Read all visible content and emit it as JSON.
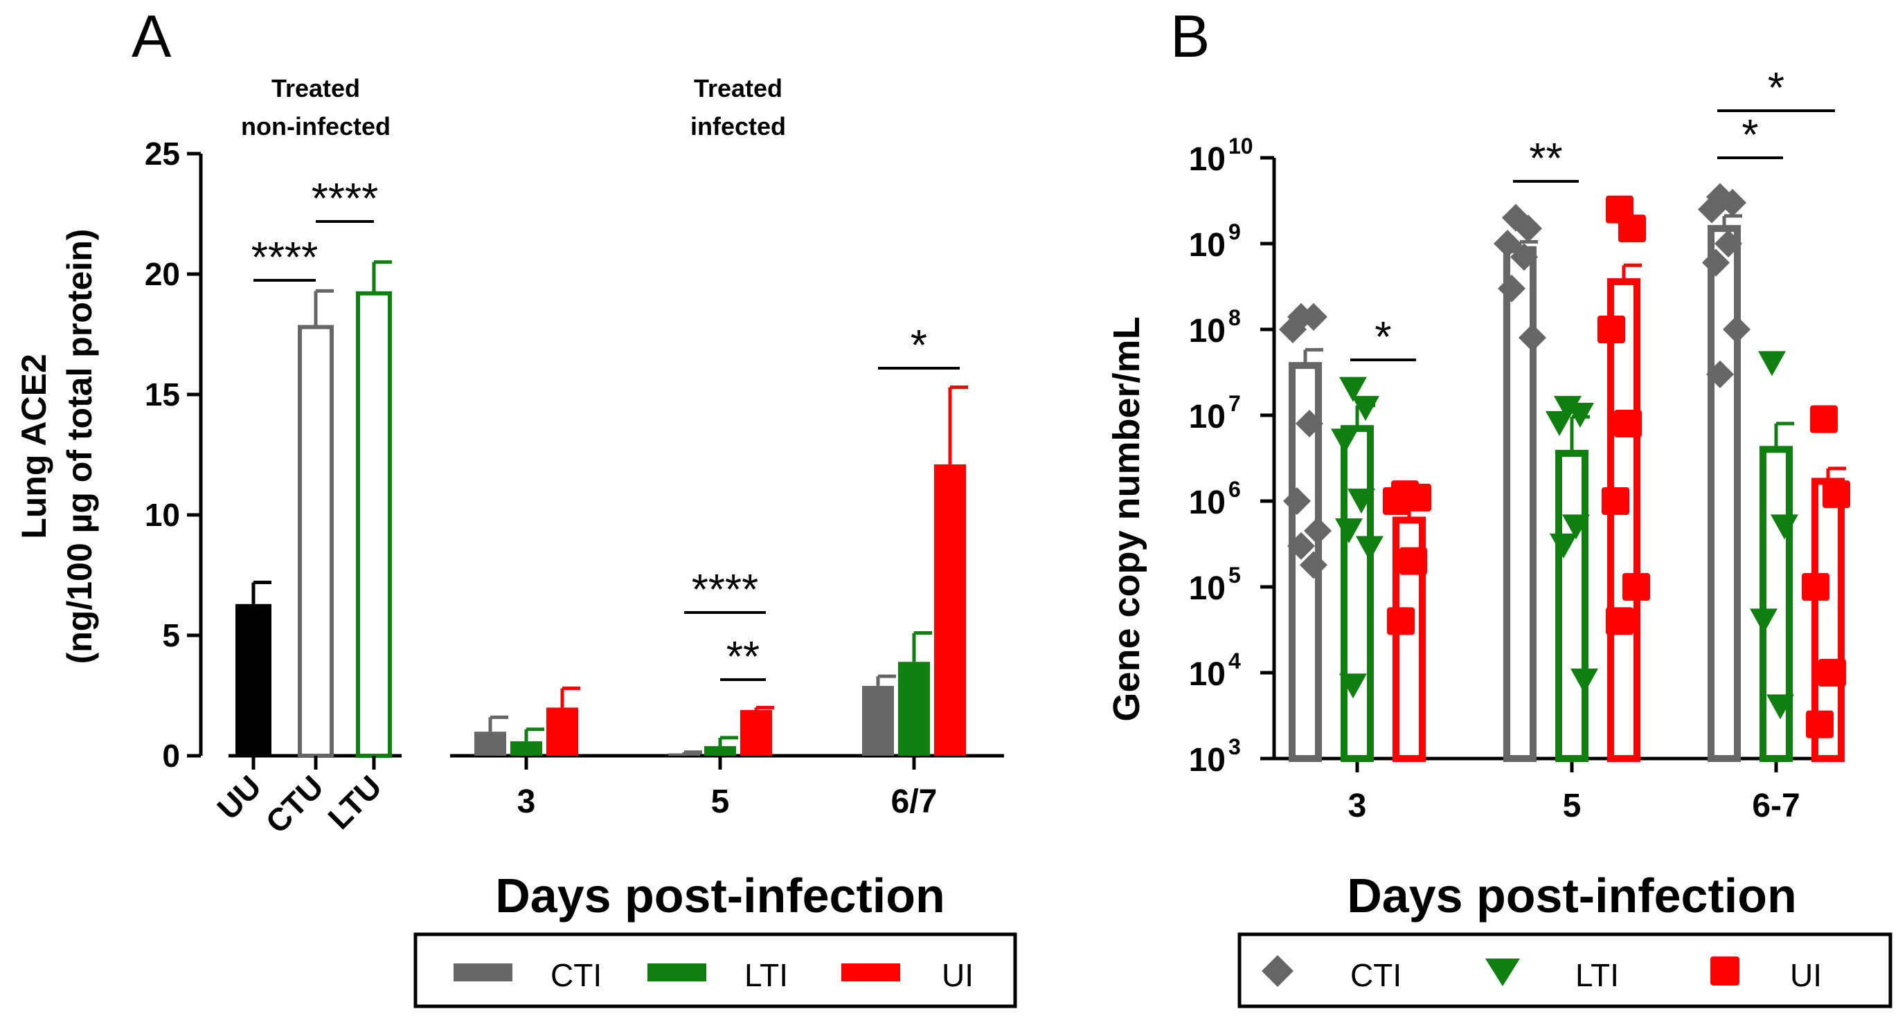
{
  "chart_data": [
    {
      "panel": "A",
      "type": "bar",
      "ylabel_line1": "Lung ACE2",
      "ylabel_line2": "(ng/100 µg of total protein)",
      "ylim": [
        0,
        25
      ],
      "yticks": [
        "0",
        "5",
        "10",
        "15",
        "20",
        "25"
      ],
      "xlabel": "Days post-infection",
      "groups": [
        {
          "title_line1": "Treated",
          "title_line2": "non-infected",
          "categories": [
            "UU",
            "CTU",
            "LTU"
          ],
          "values": [
            6.3,
            17.8,
            19.2
          ],
          "errors": [
            0.9,
            1.5,
            1.3
          ],
          "colors": [
            "#000000",
            "#666666",
            "#0f7f0f"
          ],
          "filled": [
            true,
            false,
            false
          ],
          "significance": [
            {
              "label": "****",
              "from": "UU",
              "to": "CTU"
            },
            {
              "label": "****",
              "from": "CTU",
              "to": "LTU"
            }
          ]
        },
        {
          "title_line1": "Treated",
          "title_line2": "infected",
          "categories": [
            "3",
            "5",
            "6/7"
          ],
          "series": [
            {
              "name": "CTI",
              "values": [
                1.0,
                0.1,
                2.9
              ],
              "errors": [
                0.6,
                0.05,
                0.4
              ]
            },
            {
              "name": "LTI",
              "values": [
                0.6,
                0.4,
                3.9
              ],
              "errors": [
                0.5,
                0.35,
                1.2
              ]
            },
            {
              "name": "UI",
              "values": [
                2.0,
                1.9,
                12.1
              ],
              "errors": [
                0.8,
                0.1,
                3.2
              ]
            }
          ],
          "significance": [
            {
              "label": "****",
              "category": "5",
              "from": "CTI",
              "to": "UI"
            },
            {
              "label": "**",
              "category": "5",
              "from": "LTI",
              "to": "UI"
            },
            {
              "label": "*",
              "category": "6/7",
              "from": "CTI",
              "to": "UI"
            }
          ]
        }
      ],
      "legend": [
        "CTI",
        "LTI",
        "UI"
      ]
    },
    {
      "panel": "B",
      "type": "bar",
      "yscale": "log",
      "ylabel": "Gene copy number/mL",
      "ylim": [
        1000,
        10000000000
      ],
      "ytick_exponents": [
        "3",
        "4",
        "5",
        "6",
        "7",
        "8",
        "9",
        "10"
      ],
      "xlabel": "Days post-infection",
      "categories": [
        "3",
        "5",
        "6-7"
      ],
      "series": [
        {
          "name": "CTI",
          "marker": "diamond",
          "means": [
            38000000,
            850000000,
            1500000000
          ],
          "errors_up": [
            20000000,
            200000000,
            600000000
          ]
        },
        {
          "name": "LTI",
          "marker": "triangle-down",
          "means": [
            7000000,
            3600000,
            4000000
          ],
          "errors_up": [
            6000000,
            6000000,
            4000000
          ]
        },
        {
          "name": "UI",
          "marker": "square",
          "means": [
            600000,
            360000000,
            1700000
          ],
          "errors_up": [
            250000,
            200000000,
            700000
          ]
        }
      ],
      "points": [
        [
          [
            140000000,
            140000000,
            100000000,
            8000000,
            1000000,
            450000,
            300000,
            180000
          ],
          [
            20000000,
            12000000,
            5000000,
            1000000,
            450000,
            280000,
            7000
          ],
          [
            1200000,
            1100000,
            1000000,
            200000,
            40000
          ]
        ],
        [
          [
            2000000000,
            1500000000,
            1000000000,
            700000000,
            300000000,
            80000000
          ],
          [
            12000000,
            10000000,
            8000000,
            500000,
            300000,
            8000
          ],
          [
            2500000000,
            1500000000,
            100000000,
            8000000,
            1000000,
            100000,
            40000
          ]
        ],
        [
          [
            3500000000,
            3000000000,
            2500000000,
            1000000000,
            600000000,
            100000000,
            30000000
          ],
          [
            40000000,
            500000,
            40000,
            4000
          ],
          [
            9000000,
            1200000,
            100000,
            10000,
            2500
          ]
        ]
      ],
      "significance": [
        {
          "label": "*",
          "category": "3",
          "from": "LTI",
          "to": "UI"
        },
        {
          "label": "**",
          "category": "5",
          "from": "CTI",
          "to": "LTI"
        },
        {
          "label": "*",
          "category": "6-7",
          "from": "CTI",
          "to": "LTI"
        },
        {
          "label": "*",
          "category": "6-7",
          "from": "CTI",
          "to": "UI"
        }
      ],
      "legend": [
        "CTI",
        "LTI",
        "UI"
      ]
    }
  ],
  "panel_labels": [
    "A",
    "B"
  ],
  "colors": {
    "CTI": "#666666",
    "LTI": "#0f7f0f",
    "UI": "#ff0000",
    "UU": "#000000",
    "axis": "#000000"
  }
}
